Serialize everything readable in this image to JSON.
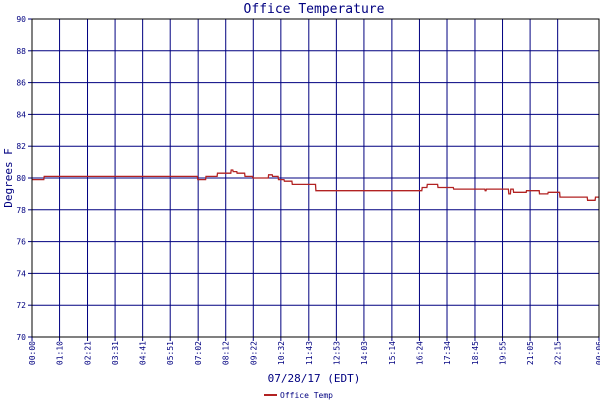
{
  "chart_data": {
    "type": "line",
    "title": "Office Temperature",
    "xlabel": "07/28/17 (EDT)",
    "ylabel": "Degrees F",
    "ylim": [
      70,
      90
    ],
    "yticks": [
      70,
      72,
      74,
      76,
      78,
      80,
      82,
      84,
      86,
      88,
      90
    ],
    "xlim": [
      0,
      1440
    ],
    "xticks": [
      {
        "minute": 0,
        "label": "00:00"
      },
      {
        "minute": 70,
        "label": "01:10"
      },
      {
        "minute": 141,
        "label": "02:21"
      },
      {
        "minute": 211,
        "label": "03:31"
      },
      {
        "minute": 281,
        "label": "04:41"
      },
      {
        "minute": 351,
        "label": "05:51"
      },
      {
        "minute": 422,
        "label": "07:02"
      },
      {
        "minute": 492,
        "label": "08:12"
      },
      {
        "minute": 562,
        "label": "09:22"
      },
      {
        "minute": 632,
        "label": "10:32"
      },
      {
        "minute": 703,
        "label": "11:43"
      },
      {
        "minute": 773,
        "label": "12:53"
      },
      {
        "minute": 843,
        "label": "14:03"
      },
      {
        "minute": 914,
        "label": "15:14"
      },
      {
        "minute": 984,
        "label": "16:24"
      },
      {
        "minute": 1054,
        "label": "17:34"
      },
      {
        "minute": 1125,
        "label": "18:45"
      },
      {
        "minute": 1195,
        "label": "19:55"
      },
      {
        "minute": 1265,
        "label": "21:05"
      },
      {
        "minute": 1335,
        "label": "22:15"
      },
      {
        "minute": 1440,
        "label": "00:06"
      }
    ],
    "grid": true,
    "legend_position": "bottom-left",
    "colors": {
      "background": "#ffffff",
      "plot_border": "#000000",
      "grid": "#000080",
      "text": "#000080",
      "series": "#b22222"
    },
    "series": [
      {
        "name": "Office Temp",
        "x": [
          0,
          30,
          31,
          420,
          421,
          441,
          442,
          470,
          471,
          505,
          506,
          510,
          511,
          520,
          521,
          540,
          541,
          560,
          561,
          600,
          601,
          610,
          611,
          625,
          626,
          640,
          641,
          660,
          661,
          720,
          721,
          990,
          991,
          1003,
          1004,
          1030,
          1031,
          1070,
          1071,
          1150,
          1151,
          1153,
          1154,
          1210,
          1211,
          1215,
          1216,
          1222,
          1223,
          1255,
          1256,
          1288,
          1289,
          1310,
          1311,
          1340,
          1341,
          1410,
          1411,
          1430,
          1431,
          1440
        ],
        "y": [
          79.9,
          79.9,
          80.1,
          80.1,
          79.9,
          79.9,
          80.1,
          80.1,
          80.3,
          80.3,
          80.5,
          80.5,
          80.4,
          80.4,
          80.3,
          80.3,
          80.1,
          80.1,
          80.0,
          80.0,
          80.2,
          80.2,
          80.1,
          80.1,
          79.9,
          79.9,
          79.8,
          79.8,
          79.6,
          79.6,
          79.2,
          79.2,
          79.4,
          79.4,
          79.6,
          79.6,
          79.4,
          79.4,
          79.3,
          79.3,
          79.2,
          79.2,
          79.3,
          79.3,
          79.0,
          79.0,
          79.3,
          79.3,
          79.1,
          79.1,
          79.2,
          79.2,
          79.0,
          79.0,
          79.1,
          79.1,
          78.8,
          78.8,
          78.6,
          78.6,
          78.8,
          78.8
        ]
      }
    ]
  }
}
